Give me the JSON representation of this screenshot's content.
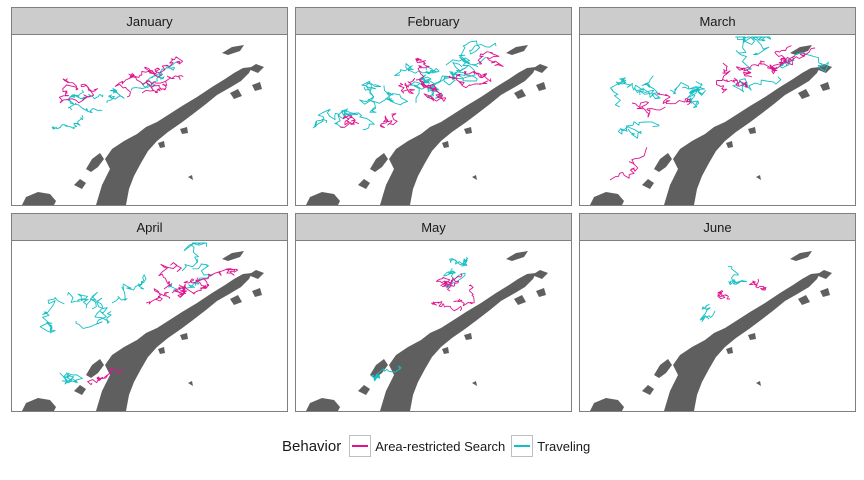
{
  "colors": {
    "search": "#e0138f",
    "travel": "#14bfc4",
    "land": "#5f5f5f"
  },
  "panels": [
    {
      "month": "January",
      "search_tracks": 7,
      "travel_tracks": 6
    },
    {
      "month": "February",
      "search_tracks": 9,
      "travel_tracks": 10
    },
    {
      "month": "March",
      "search_tracks": 9,
      "travel_tracks": 9
    },
    {
      "month": "April",
      "search_tracks": 7,
      "travel_tracks": 7
    },
    {
      "month": "May",
      "search_tracks": 4,
      "travel_tracks": 3
    },
    {
      "month": "June",
      "search_tracks": 2,
      "travel_tracks": 2
    }
  ],
  "legend": {
    "title": "Behavior",
    "search_label": "Area-restricted Search",
    "travel_label": "Traveling"
  }
}
